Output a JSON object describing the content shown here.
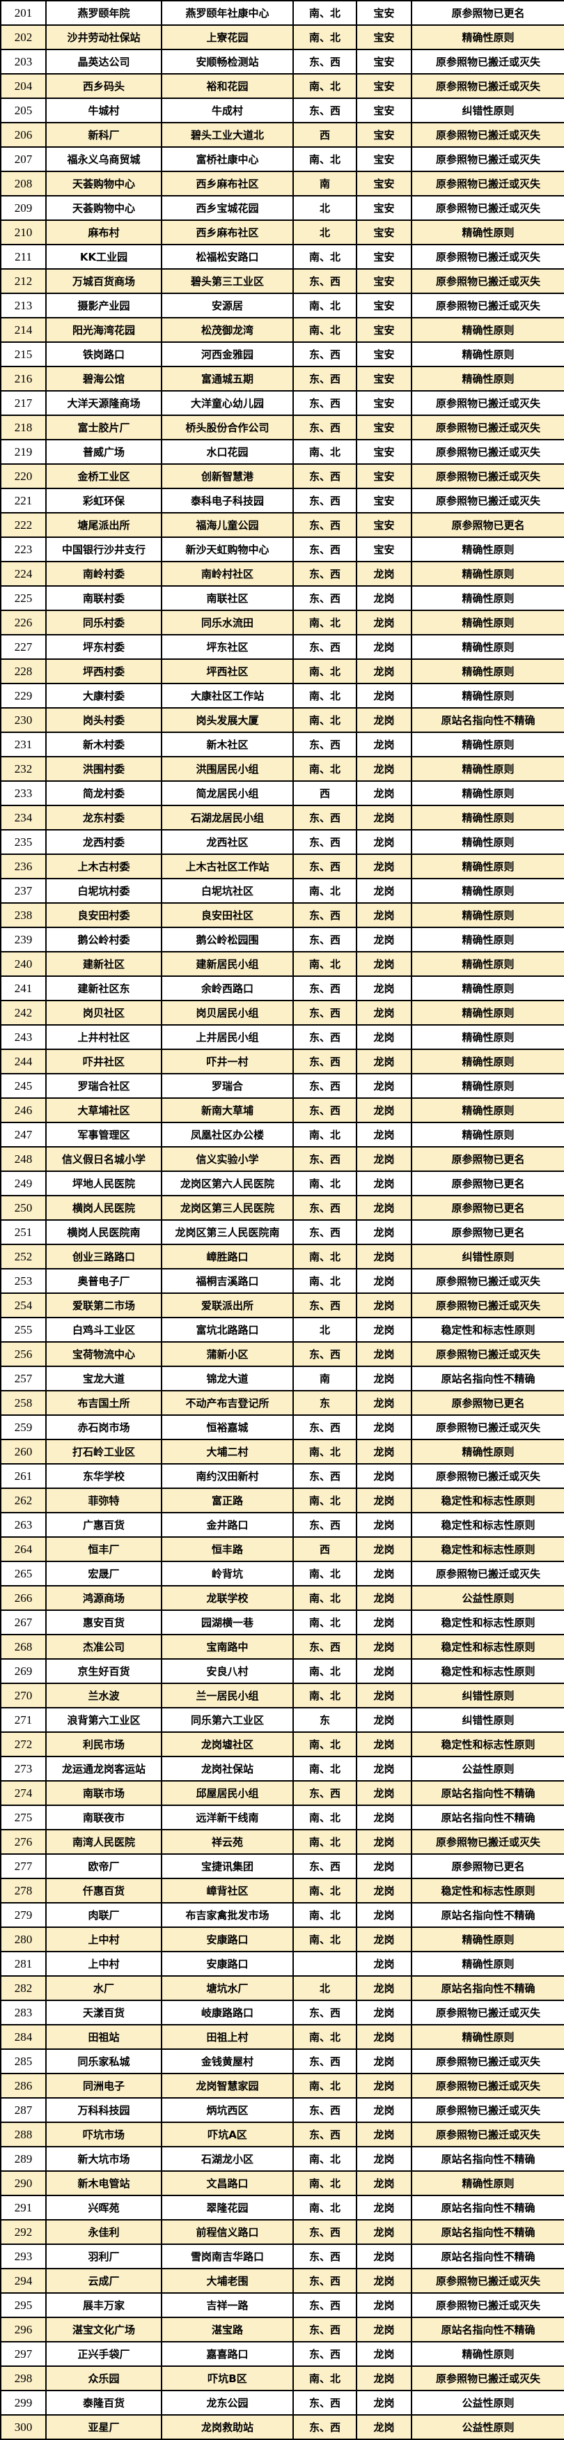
{
  "colors": {
    "stripe": "#FCF0C8",
    "row_white": "#FFFFFF",
    "border": "#000000",
    "text": "#000000"
  },
  "table": {
    "rows": [
      [
        "201",
        "燕罗颐年院",
        "燕罗颐年社康中心",
        "南、北",
        "宝安",
        "原参照物已更名"
      ],
      [
        "202",
        "沙井劳动社保站",
        "上寮花园",
        "南、北",
        "宝安",
        "精确性原则"
      ],
      [
        "203",
        "晶英达公司",
        "安顺畅检测站",
        "东、西",
        "宝安",
        "原参照物已搬迁或灭失"
      ],
      [
        "204",
        "西乡码头",
        "裕和花园",
        "南、北",
        "宝安",
        "原参照物已搬迁或灭失"
      ],
      [
        "205",
        "牛城村",
        "牛成村",
        "东、西",
        "宝安",
        "纠错性原则"
      ],
      [
        "206",
        "新科厂",
        "碧头工业大道北",
        "西",
        "宝安",
        "原参照物已搬迁或灭失"
      ],
      [
        "207",
        "福永义乌商贸城",
        "富桥社康中心",
        "南、北",
        "宝安",
        "原参照物已搬迁或灭失"
      ],
      [
        "208",
        "天荟购物中心",
        "西乡麻布社区",
        "南",
        "宝安",
        "原参照物已搬迁或灭失"
      ],
      [
        "209",
        "天荟购物中心",
        "西乡宝城花园",
        "北",
        "宝安",
        "原参照物已搬迁或灭失"
      ],
      [
        "210",
        "麻布村",
        "西乡麻布社区",
        "北",
        "宝安",
        "精确性原则"
      ],
      [
        "211",
        "KK工业园",
        "松福松安路口",
        "南、北",
        "宝安",
        "原参照物已搬迁或灭失"
      ],
      [
        "212",
        "万城百货商场",
        "碧头第三工业区",
        "东、西",
        "宝安",
        "原参照物已搬迁或灭失"
      ],
      [
        "213",
        "摄影产业园",
        "安源居",
        "南、北",
        "宝安",
        "原参照物已搬迁或灭失"
      ],
      [
        "214",
        "阳光海湾花园",
        "松茂御龙湾",
        "南、北",
        "宝安",
        "精确性原则"
      ],
      [
        "215",
        "铁岗路口",
        "河西金雅园",
        "东、西",
        "宝安",
        "精确性原则"
      ],
      [
        "216",
        "碧海公馆",
        "富通城五期",
        "东、西",
        "宝安",
        "精确性原则"
      ],
      [
        "217",
        "大洋天源隆商场",
        "大洋童心幼儿园",
        "东、西",
        "宝安",
        "原参照物已搬迁或灭失"
      ],
      [
        "218",
        "富士胶片厂",
        "桥头股份合作公司",
        "东、西",
        "宝安",
        "原参照物已搬迁或灭失"
      ],
      [
        "219",
        "普威广场",
        "水口花园",
        "南、北",
        "宝安",
        "原参照物已搬迁或灭失"
      ],
      [
        "220",
        "金桥工业区",
        "创新智慧港",
        "东、西",
        "宝安",
        "原参照物已搬迁或灭失"
      ],
      [
        "221",
        "彩虹环保",
        "泰科电子科技园",
        "东、西",
        "宝安",
        "原参照物已搬迁或灭失"
      ],
      [
        "222",
        "塘尾派出所",
        "福海儿童公园",
        "东、西",
        "宝安",
        "原参照物已更名"
      ],
      [
        "223",
        "中国银行沙井支行",
        "新沙天虹购物中心",
        "东、西",
        "宝安",
        "精确性原则"
      ],
      [
        "224",
        "南岭村委",
        "南岭村社区",
        "东、西",
        "龙岗",
        "精确性原则"
      ],
      [
        "225",
        "南联村委",
        "南联社区",
        "东、西",
        "龙岗",
        "精确性原则"
      ],
      [
        "226",
        "同乐村委",
        "同乐水流田",
        "南、北",
        "龙岗",
        "精确性原则"
      ],
      [
        "227",
        "坪东村委",
        "坪东社区",
        "东、西",
        "龙岗",
        "精确性原则"
      ],
      [
        "228",
        "坪西村委",
        "坪西社区",
        "南、北",
        "龙岗",
        "精确性原则"
      ],
      [
        "229",
        "大康村委",
        "大康社区工作站",
        "南、北",
        "龙岗",
        "精确性原则"
      ],
      [
        "230",
        "岗头村委",
        "岗头发展大厦",
        "南、北",
        "龙岗",
        "原站名指向性不精确"
      ],
      [
        "231",
        "新木村委",
        "新木社区",
        "东、西",
        "龙岗",
        "精确性原则"
      ],
      [
        "232",
        "洪围村委",
        "洪围居民小组",
        "南、北",
        "龙岗",
        "精确性原则"
      ],
      [
        "233",
        "简龙村委",
        "简龙居民小组",
        "西",
        "龙岗",
        "精确性原则"
      ],
      [
        "234",
        "龙东村委",
        "石湖龙居民小组",
        "东、西",
        "龙岗",
        "精确性原则"
      ],
      [
        "235",
        "龙西村委",
        "龙西社区",
        "东、西",
        "龙岗",
        "精确性原则"
      ],
      [
        "236",
        "上木古村委",
        "上木古社区工作站",
        "东、西",
        "龙岗",
        "精确性原则"
      ],
      [
        "237",
        "白坭坑村委",
        "白坭坑社区",
        "南、北",
        "龙岗",
        "精确性原则"
      ],
      [
        "238",
        "良安田村委",
        "良安田社区",
        "东、西",
        "龙岗",
        "精确性原则"
      ],
      [
        "239",
        "鹅公岭村委",
        "鹅公岭松园围",
        "东、西",
        "龙岗",
        "精确性原则"
      ],
      [
        "240",
        "建新社区",
        "建新居民小组",
        "南、北",
        "龙岗",
        "精确性原则"
      ],
      [
        "241",
        "建新社区东",
        "余岭西路口",
        "东、西",
        "龙岗",
        "精确性原则"
      ],
      [
        "242",
        "岗贝社区",
        "岗贝居民小组",
        "东、西",
        "龙岗",
        "精确性原则"
      ],
      [
        "243",
        "上井村社区",
        "上井居民小组",
        "东、西",
        "龙岗",
        "精确性原则"
      ],
      [
        "244",
        "吓井社区",
        "吓井一村",
        "东、西",
        "龙岗",
        "精确性原则"
      ],
      [
        "245",
        "罗瑞合社区",
        "罗瑞合",
        "东、西",
        "龙岗",
        "精确性原则"
      ],
      [
        "246",
        "大草埔社区",
        "新南大草埔",
        "东、西",
        "龙岗",
        "精确性原则"
      ],
      [
        "247",
        "军事管理区",
        "凤凰社区办公楼",
        "南、北",
        "龙岗",
        "精确性原则"
      ],
      [
        "248",
        "信义假日名城小学",
        "信义实验小学",
        "东、西",
        "龙岗",
        "原参照物已更名"
      ],
      [
        "249",
        "坪地人民医院",
        "龙岗区第六人民医院",
        "南、北",
        "龙岗",
        "原参照物已更名"
      ],
      [
        "250",
        "横岗人民医院",
        "龙岗区第三人民医院",
        "东、西",
        "龙岗",
        "原参照物已更名"
      ],
      [
        "251",
        "横岗人民医院南",
        "龙岗区第三人民医院南",
        "东、西",
        "龙岗",
        "原参照物已更名"
      ],
      [
        "252",
        "创业三路路口",
        "嶂胜路口",
        "南、北",
        "龙岗",
        "纠错性原则"
      ],
      [
        "253",
        "奥普电子厂",
        "福桐吉溪路口",
        "南、北",
        "龙岗",
        "原参照物已搬迁或灭失"
      ],
      [
        "254",
        "爱联第二市场",
        "爱联派出所",
        "东、西",
        "龙岗",
        "原参照物已搬迁或灭失"
      ],
      [
        "255",
        "白鸡斗工业区",
        "富坑北路路口",
        "北",
        "龙岗",
        "稳定性和标志性原则"
      ],
      [
        "256",
        "宝荷物流中心",
        "蒲新小区",
        "东、西",
        "龙岗",
        "原参照物已搬迁或灭失"
      ],
      [
        "257",
        "宝龙大道",
        "锦龙大道",
        "南",
        "龙岗",
        "原站名指向性不精确"
      ],
      [
        "258",
        "布吉国土所",
        "不动产布吉登记所",
        "东",
        "龙岗",
        "原参照物已更名"
      ],
      [
        "259",
        "赤石岗市场",
        "恒裕嘉城",
        "东、西",
        "龙岗",
        "原参照物已搬迁或灭失"
      ],
      [
        "260",
        "打石岭工业区",
        "大埔二村",
        "南、北",
        "龙岗",
        "精确性原则"
      ],
      [
        "261",
        "东华学校",
        "南约汉田新村",
        "东、西",
        "龙岗",
        "原参照物已搬迁或灭失"
      ],
      [
        "262",
        "菲弥特",
        "富正路",
        "南、北",
        "龙岗",
        "稳定性和标志性原则"
      ],
      [
        "263",
        "广惠百货",
        "金井路口",
        "东、西",
        "龙岗",
        "稳定性和标志性原则"
      ],
      [
        "264",
        "恒丰厂",
        "恒丰路",
        "西",
        "龙岗",
        "稳定性和标志性原则"
      ],
      [
        "265",
        "宏晟厂",
        "岭背坑",
        "南、北",
        "龙岗",
        "原参照物已搬迁或灭失"
      ],
      [
        "266",
        "鸿源商场",
        "龙联学校",
        "南、北",
        "龙岗",
        "公益性原则"
      ],
      [
        "267",
        "惠安百货",
        "园湖横一巷",
        "南、北",
        "龙岗",
        "稳定性和标志性原则"
      ],
      [
        "268",
        "杰准公司",
        "宝南路中",
        "东、西",
        "龙岗",
        "稳定性和标志性原则"
      ],
      [
        "269",
        "京生好百货",
        "安良八村",
        "南、北",
        "龙岗",
        "稳定性和标志性原则"
      ],
      [
        "270",
        "兰水波",
        "兰一居民小组",
        "南、北",
        "龙岗",
        "纠错性原则"
      ],
      [
        "271",
        "浪背第六工业区",
        "同乐第六工业区",
        "东",
        "龙岗",
        "纠错性原则"
      ],
      [
        "272",
        "利民市场",
        "龙岗墟社区",
        "南、北",
        "龙岗",
        "稳定性和标志性原则"
      ],
      [
        "273",
        "龙运通龙岗客运站",
        "龙岗社保站",
        "南、北",
        "龙岗",
        "公益性原则"
      ],
      [
        "274",
        "南联市场",
        "邱屋居民小组",
        "东、西",
        "龙岗",
        "原站名指向性不精确"
      ],
      [
        "275",
        "南联夜市",
        "远洋新干线南",
        "南、北",
        "龙岗",
        "原站名指向性不精确"
      ],
      [
        "276",
        "南湾人民医院",
        "祥云苑",
        "南、北",
        "龙岗",
        "原参照物已搬迁或灭失"
      ],
      [
        "277",
        "欧帝厂",
        "宝捷讯集团",
        "东、西",
        "龙岗",
        "原参照物已更名"
      ],
      [
        "278",
        "仟惠百货",
        "嶂背社区",
        "南、北",
        "龙岗",
        "稳定性和标志性原则"
      ],
      [
        "279",
        "肉联厂",
        "布吉家禽批发市场",
        "南、北",
        "龙岗",
        "原站名指向性不精确"
      ],
      [
        "280",
        "上中村",
        "安康路口",
        "南、北",
        "龙岗",
        "精确性原则"
      ],
      [
        "281",
        "上中村",
        "安康路口",
        "",
        "龙岗",
        "精确性原则"
      ],
      [
        "282",
        "水厂",
        "塘坑水厂",
        "北",
        "龙岗",
        "原站名指向性不精确"
      ],
      [
        "283",
        "天漾百货",
        "岐康路路口",
        "东、西",
        "龙岗",
        "原参照物已搬迁或灭失"
      ],
      [
        "284",
        "田祖站",
        "田祖上村",
        "南、北",
        "龙岗",
        "精确性原则"
      ],
      [
        "285",
        "同乐家私城",
        "金钱黄屋村",
        "东、西",
        "龙岗",
        "原参照物已搬迁或灭失"
      ],
      [
        "286",
        "同洲电子",
        "龙岗智慧家园",
        "南、北",
        "龙岗",
        "原参照物已搬迁或灭失"
      ],
      [
        "287",
        "万科科技园",
        "炳坑西区",
        "东、西",
        "龙岗",
        "原参照物已搬迁或灭失"
      ],
      [
        "288",
        "吓坑市场",
        "吓坑A区",
        "东、西",
        "龙岗",
        "原参照物已搬迁或灭失"
      ],
      [
        "289",
        "新大坑市场",
        "石湖龙小区",
        "南、北",
        "龙岗",
        "原站名指向性不精确"
      ],
      [
        "290",
        "新木电管站",
        "文昌路口",
        "南、北",
        "龙岗",
        "精确性原则"
      ],
      [
        "291",
        "兴晖苑",
        "翠隆花园",
        "南、北",
        "龙岗",
        "原站名指向性不精确"
      ],
      [
        "292",
        "永佳利",
        "前程信义路口",
        "东、西",
        "龙岗",
        "原站名指向性不精确"
      ],
      [
        "293",
        "羽利厂",
        "雪岗南吉华路口",
        "东、西",
        "龙岗",
        "原站名指向性不精确"
      ],
      [
        "294",
        "云成厂",
        "大埔老围",
        "东、西",
        "龙岗",
        "原参照物已搬迁或灭失"
      ],
      [
        "295",
        "展丰万家",
        "吉祥一路",
        "东、西",
        "龙岗",
        "原参照物已搬迁或灭失"
      ],
      [
        "296",
        "湛宝文化广场",
        "湛宝路",
        "东、西",
        "龙岗",
        "原站名指向性不精确"
      ],
      [
        "297",
        "正兴手袋厂",
        "嘉喜路口",
        "东、西",
        "龙岗",
        "精确性原则"
      ],
      [
        "298",
        "众乐园",
        "吓坑B区",
        "南、北",
        "龙岗",
        "原参照物已搬迁或灭失"
      ],
      [
        "299",
        "泰隆百货",
        "龙东公园",
        "东、西",
        "龙岗",
        "公益性原则"
      ],
      [
        "300",
        "亚星厂",
        "龙岗救助站",
        "东、西",
        "龙岗",
        "公益性原则"
      ]
    ]
  }
}
